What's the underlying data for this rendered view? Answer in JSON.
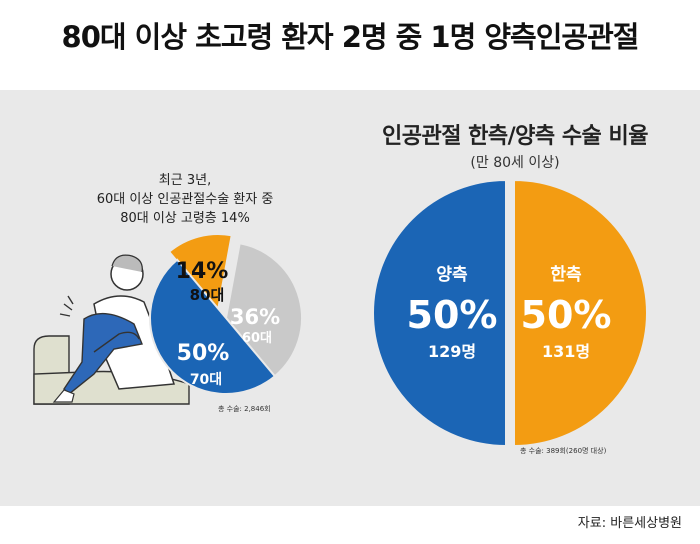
{
  "headline": "80대 이상 초고령 환자 2명 중 1명 양측인공관절",
  "left": {
    "caption_line1": "최근 3년,",
    "caption_line2": "60대 이상 인공관절수술 환자 중",
    "caption_line3": "80대 이상 고령층 14%",
    "total_note": "총 수술: 2,846회"
  },
  "right": {
    "title": "인공관절 한측/양측 수술 비율",
    "subtitle": "(만 80세 이상)",
    "total_note": "총 수술: 389회(260명 대상)"
  },
  "source": "자료: 바른세상병원",
  "colors": {
    "orange": "#F39C12",
    "blue": "#1B65B5",
    "gray": "#C9C9C9",
    "panel": "#E9E9E9"
  },
  "chart_data": [
    {
      "type": "pie",
      "title": "",
      "slices": [
        {
          "label": "80대",
          "value": 14,
          "display": "14%",
          "color": "#F39C12"
        },
        {
          "label": "60대",
          "value": 36,
          "display": "36%",
          "color": "#C9C9C9"
        },
        {
          "label": "70대",
          "value": 50,
          "display": "50%",
          "color": "#1B65B5"
        }
      ]
    },
    {
      "type": "pie",
      "title": "인공관절 한측/양측 수술 비율",
      "slices": [
        {
          "label": "한측",
          "value": 50,
          "display": "50%",
          "count": "131명",
          "color": "#F39C12"
        },
        {
          "label": "양측",
          "value": 50,
          "display": "50%",
          "count": "129명",
          "color": "#1B65B5"
        }
      ]
    }
  ]
}
